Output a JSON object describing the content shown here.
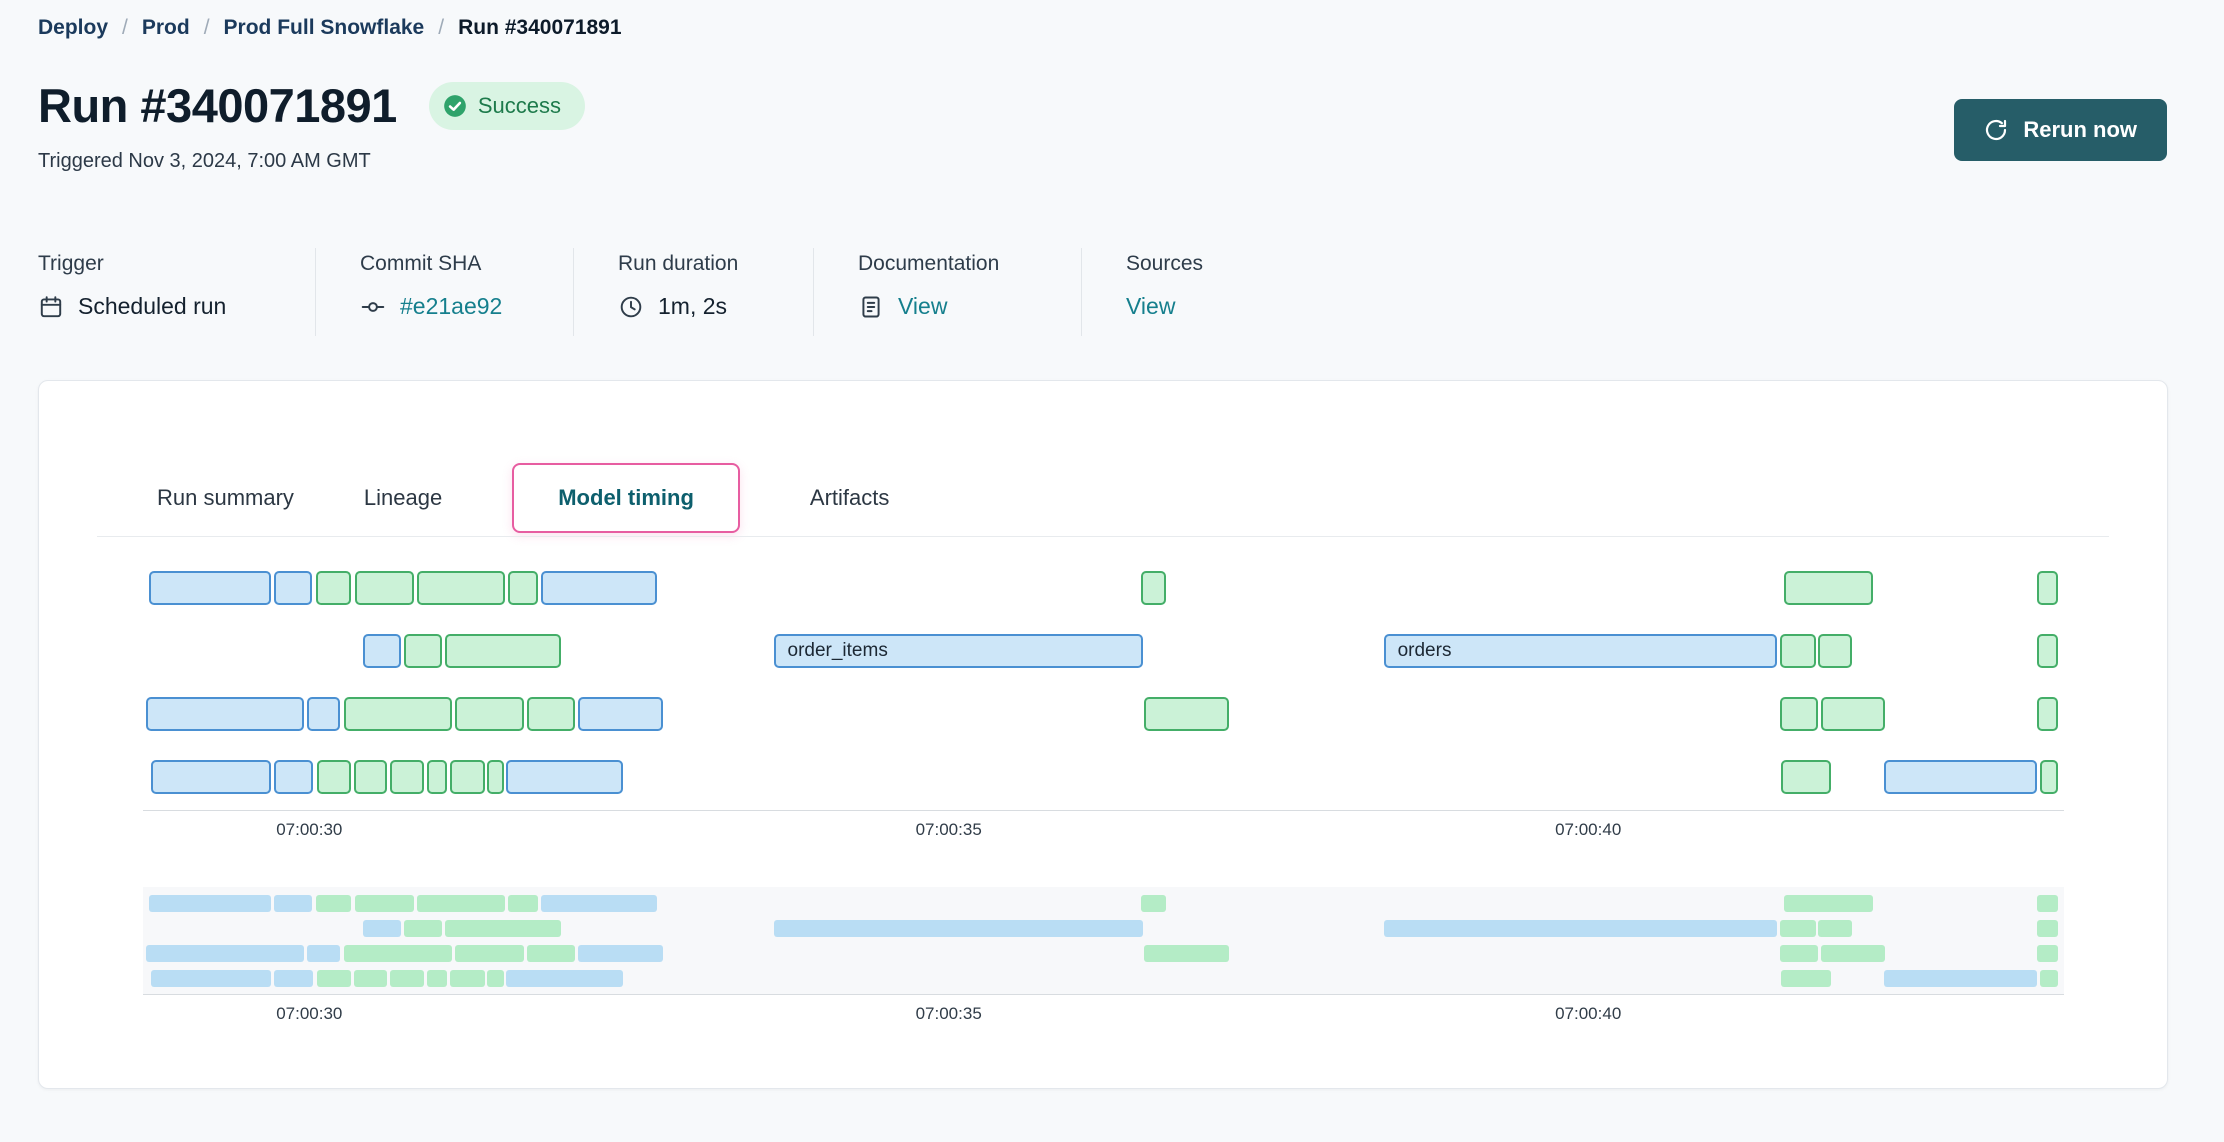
{
  "breadcrumb": {
    "items": [
      "Deploy",
      "Prod",
      "Prod Full Snowflake",
      "Run #340071891"
    ],
    "separator": "/"
  },
  "header": {
    "title": "Run #340071891",
    "status_badge": "Success",
    "triggered_text": "Triggered Nov 3, 2024, 7:00 AM GMT",
    "rerun_button": "Rerun now"
  },
  "meta_columns": [
    {
      "label": "Trigger",
      "value": "Scheduled run",
      "icon": "calendar-icon",
      "is_link": false
    },
    {
      "label": "Commit SHA",
      "value": "#e21ae92",
      "icon": "commit-icon",
      "is_link": true
    },
    {
      "label": "Run duration",
      "value": "1m, 2s",
      "icon": "clock-icon",
      "is_link": false
    },
    {
      "label": "Documentation",
      "value": "View",
      "icon": "document-icon",
      "is_link": true
    },
    {
      "label": "Sources",
      "value": "View",
      "icon": null,
      "is_link": true
    }
  ],
  "tabs": [
    {
      "label": "Run summary",
      "active": false
    },
    {
      "label": "Lineage",
      "active": false
    },
    {
      "label": "Model timing",
      "active": true
    },
    {
      "label": "Artifacts",
      "active": false
    }
  ],
  "colors": {
    "success_bg": "#d9f4e3",
    "success_text": "#1d7a4b",
    "link": "#157f8d",
    "rerun_button_bg": "#265d68",
    "active_tab_border": "#e75da1",
    "active_tab_text": "#0d5f6d"
  },
  "chart_data": {
    "type": "gantt",
    "title": "Model timing",
    "x_axis": "time of day (GMT)",
    "time_domain_note": "seconds after 07:00:00 GMT",
    "time_domain_seconds": [
      28.7,
      43.72
    ],
    "ticks": [
      {
        "t": 30,
        "label": "07:00:30"
      },
      {
        "t": 35,
        "label": "07:00:35"
      },
      {
        "t": 40,
        "label": "07:00:40"
      }
    ],
    "legend": "blue = model, green = test",
    "colors": {
      "blue_fill": "#cde6f8",
      "blue_border": "#4a90d2",
      "green_fill": "#cbf2d7",
      "green_border": "#44ae68",
      "mini_blue": "#b9ddf4",
      "mini_green": "#b4ecc6"
    },
    "rows": [
      {
        "bars": [
          {
            "start": 28.75,
            "end": 29.7,
            "color": "blue"
          },
          {
            "start": 29.72,
            "end": 30.02,
            "color": "blue"
          },
          {
            "start": 30.05,
            "end": 30.33,
            "color": "green"
          },
          {
            "start": 30.36,
            "end": 30.82,
            "color": "green"
          },
          {
            "start": 30.84,
            "end": 31.53,
            "color": "green"
          },
          {
            "start": 31.55,
            "end": 31.79,
            "color": "green"
          },
          {
            "start": 31.81,
            "end": 32.72,
            "color": "blue"
          },
          {
            "start": 36.5,
            "end": 36.7,
            "color": "green"
          },
          {
            "start": 41.53,
            "end": 42.23,
            "color": "green"
          },
          {
            "start": 43.51,
            "end": 43.67,
            "color": "green"
          }
        ]
      },
      {
        "bars": [
          {
            "start": 30.42,
            "end": 30.72,
            "color": "blue"
          },
          {
            "start": 30.74,
            "end": 31.04,
            "color": "green"
          },
          {
            "start": 31.06,
            "end": 31.97,
            "color": "green"
          },
          {
            "start": 33.63,
            "end": 36.52,
            "color": "blue",
            "label": "order_items"
          },
          {
            "start": 38.4,
            "end": 41.48,
            "color": "blue",
            "label": "orders"
          },
          {
            "start": 41.5,
            "end": 41.78,
            "color": "green"
          },
          {
            "start": 41.8,
            "end": 42.06,
            "color": "green"
          },
          {
            "start": 43.51,
            "end": 43.67,
            "color": "green"
          }
        ]
      },
      {
        "bars": [
          {
            "start": 28.72,
            "end": 29.96,
            "color": "blue"
          },
          {
            "start": 29.98,
            "end": 30.24,
            "color": "blue"
          },
          {
            "start": 30.27,
            "end": 31.12,
            "color": "green"
          },
          {
            "start": 31.14,
            "end": 31.68,
            "color": "green"
          },
          {
            "start": 31.7,
            "end": 32.08,
            "color": "green"
          },
          {
            "start": 32.1,
            "end": 32.77,
            "color": "blue"
          },
          {
            "start": 36.53,
            "end": 37.19,
            "color": "green"
          },
          {
            "start": 41.5,
            "end": 41.8,
            "color": "green"
          },
          {
            "start": 41.82,
            "end": 42.32,
            "color": "green"
          },
          {
            "start": 43.51,
            "end": 43.67,
            "color": "green"
          }
        ]
      },
      {
        "bars": [
          {
            "start": 28.76,
            "end": 29.7,
            "color": "blue"
          },
          {
            "start": 29.72,
            "end": 30.03,
            "color": "blue"
          },
          {
            "start": 30.06,
            "end": 30.33,
            "color": "green"
          },
          {
            "start": 30.35,
            "end": 30.61,
            "color": "green"
          },
          {
            "start": 30.63,
            "end": 30.9,
            "color": "green"
          },
          {
            "start": 30.92,
            "end": 31.08,
            "color": "green"
          },
          {
            "start": 31.1,
            "end": 31.37,
            "color": "green"
          },
          {
            "start": 31.39,
            "end": 31.52,
            "color": "green"
          },
          {
            "start": 31.54,
            "end": 32.45,
            "color": "blue"
          },
          {
            "start": 41.51,
            "end": 41.9,
            "color": "green"
          },
          {
            "start": 42.31,
            "end": 43.51,
            "color": "blue"
          },
          {
            "start": 43.53,
            "end": 43.67,
            "color": "green"
          }
        ]
      }
    ]
  }
}
